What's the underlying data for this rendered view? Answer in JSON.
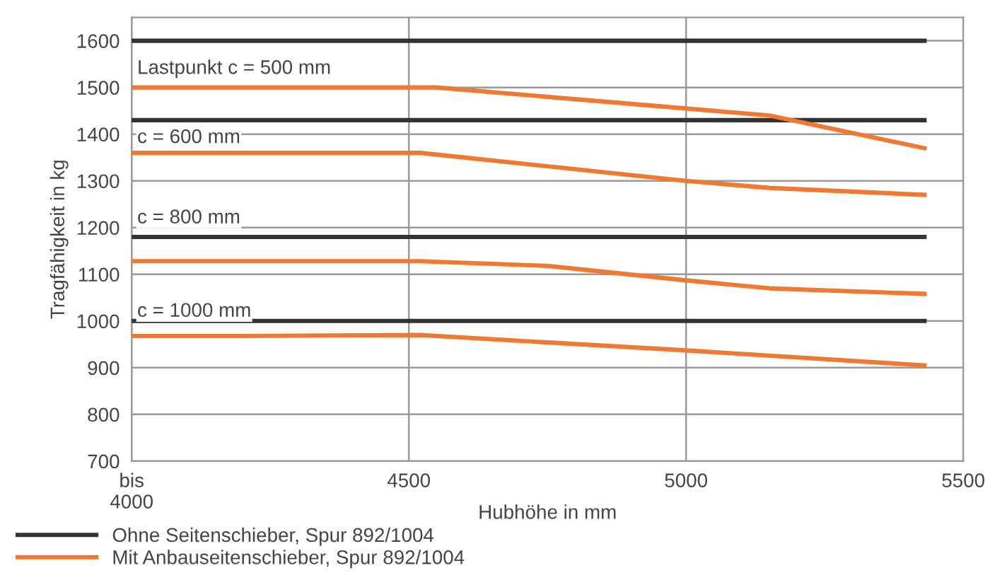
{
  "chart_data": {
    "type": "line",
    "xlabel": "Hubhöhe in mm",
    "ylabel": "Tragfähigkeit in kg",
    "xlim": [
      4000,
      5500
    ],
    "xticks": [
      {
        "value": 4000,
        "label": "bis\n4000"
      },
      4500,
      5000,
      5500
    ],
    "ylim": [
      700,
      1650
    ],
    "yticks": [
      700,
      800,
      900,
      1000,
      1100,
      1200,
      1300,
      1400,
      1500,
      1600
    ],
    "grid": true,
    "legend": "bottom",
    "marker": "none",
    "line_style": "solid",
    "series": [
      {
        "name": "Ohne Seitenschieber, Spur 892/1004",
        "color": "#333333",
        "x": [
          4000,
          5430
        ],
        "values": [
          1600,
          1600
        ]
      },
      {
        "color": "#333333",
        "x": [
          4000,
          5430
        ],
        "values": [
          1430,
          1430
        ]
      },
      {
        "color": "#333333",
        "x": [
          4000,
          5430
        ],
        "values": [
          1180,
          1180
        ]
      },
      {
        "color": "#333333",
        "x": [
          4000,
          5430
        ],
        "values": [
          1000,
          1000
        ]
      },
      {
        "name": "Mit Anbauseitenschieber, Spur 892/1004",
        "color": "#f07830",
        "x": [
          4000,
          4550,
          5150,
          5430
        ],
        "values": [
          1500,
          1500,
          1440,
          1370
        ]
      },
      {
        "color": "#f07830",
        "x": [
          4000,
          4520,
          4560,
          5000,
          5150,
          5430
        ],
        "values": [
          1360,
          1360,
          1355,
          1300,
          1285,
          1270
        ]
      },
      {
        "color": "#f07830",
        "x": [
          4000,
          4520,
          4750,
          5000,
          5150,
          5430
        ],
        "values": [
          1128,
          1128,
          1118,
          1087,
          1070,
          1058
        ]
      },
      {
        "color": "#f07830",
        "x": [
          4000,
          4200,
          4520,
          5000,
          5430
        ],
        "values": [
          968,
          968,
          970,
          937,
          905
        ]
      }
    ],
    "annotations": [
      "Lastpunkt c = 500 mm",
      "c = 600 mm",
      "c = 800 mm",
      "c = 1000 mm"
    ]
  }
}
